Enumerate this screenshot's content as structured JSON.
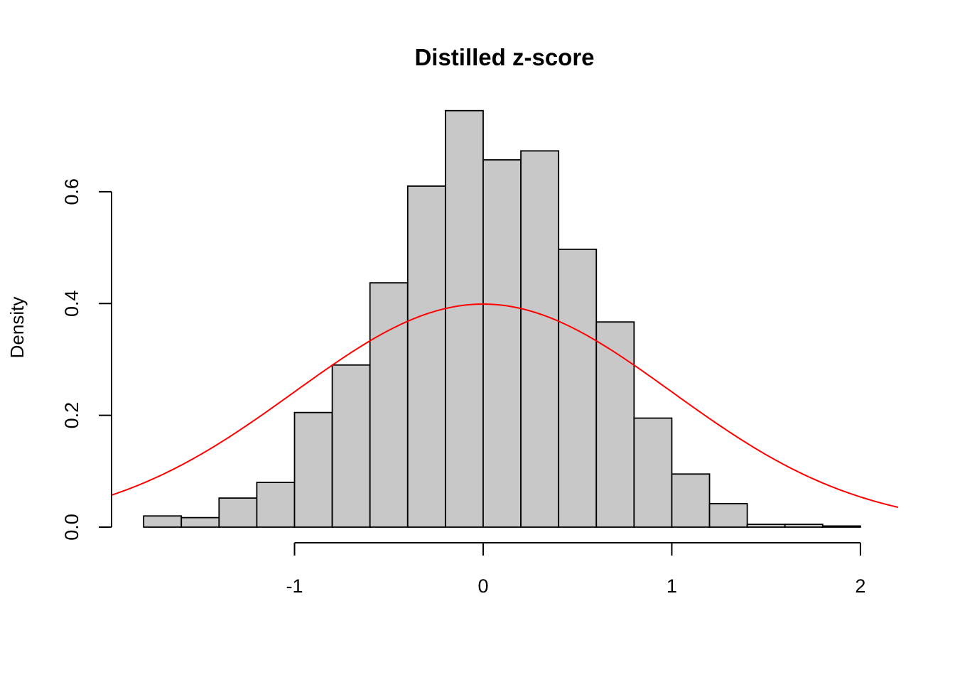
{
  "chart_data": {
    "type": "bar",
    "title": "Distilled z-score",
    "xlabel": "",
    "ylabel": "Density",
    "xlim": [
      -1.97,
      2.2
    ],
    "ylim": [
      0,
      0.765
    ],
    "x_ticks": [
      -1,
      0,
      1,
      2
    ],
    "x_tick_labels": [
      "-1",
      "0",
      "1",
      "2"
    ],
    "y_ticks": [
      0,
      0.2,
      0.4,
      0.6
    ],
    "y_tick_labels": [
      "0.0",
      "0.2",
      "0.4",
      "0.6"
    ],
    "grid": false,
    "bins": [
      {
        "x0": -1.8,
        "x1": -1.6,
        "density": 0.02
      },
      {
        "x0": -1.6,
        "x1": -1.4,
        "density": 0.017
      },
      {
        "x0": -1.4,
        "x1": -1.2,
        "density": 0.052
      },
      {
        "x0": -1.2,
        "x1": -1.0,
        "density": 0.08
      },
      {
        "x0": -1.0,
        "x1": -0.8,
        "density": 0.205
      },
      {
        "x0": -0.8,
        "x1": -0.6,
        "density": 0.29
      },
      {
        "x0": -0.6,
        "x1": -0.4,
        "density": 0.437
      },
      {
        "x0": -0.4,
        "x1": -0.2,
        "density": 0.61
      },
      {
        "x0": -0.2,
        "x1": 0.0,
        "density": 0.745
      },
      {
        "x0": 0.0,
        "x1": 0.2,
        "density": 0.657
      },
      {
        "x0": 0.2,
        "x1": 0.4,
        "density": 0.673
      },
      {
        "x0": 0.4,
        "x1": 0.6,
        "density": 0.497
      },
      {
        "x0": 0.6,
        "x1": 0.8,
        "density": 0.367
      },
      {
        "x0": 0.8,
        "x1": 1.0,
        "density": 0.195
      },
      {
        "x0": 1.0,
        "x1": 1.2,
        "density": 0.095
      },
      {
        "x0": 1.2,
        "x1": 1.4,
        "density": 0.042
      },
      {
        "x0": 1.4,
        "x1": 1.6,
        "density": 0.005
      },
      {
        "x0": 1.6,
        "x1": 1.8,
        "density": 0.005
      },
      {
        "x0": 1.8,
        "x1": 2.0,
        "density": 0.002
      }
    ],
    "overlay": {
      "type": "line",
      "function": "standard normal density",
      "mean": 0,
      "sd": 1,
      "color": "#ff0000"
    },
    "bar_fill": "#c8c8c8"
  }
}
